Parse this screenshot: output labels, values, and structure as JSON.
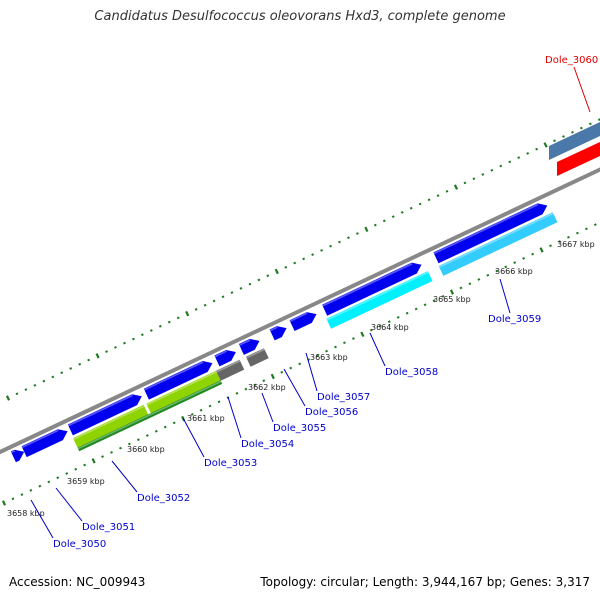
{
  "title": "Candidatus Desulfococcus oleovorans Hxd3, complete genome",
  "footer": {
    "accession": "Accession: NC_009943",
    "summary": "Topology: circular; Length: 3,944,167 bp; Genes: 3,317"
  },
  "colors": {
    "backbone": "#888888",
    "tick": "#1f7a1f",
    "gene_label": "#0000cc",
    "highlight_label": "#dd0000",
    "feature_blue": "#0000ee",
    "feature_green": "#8fd400",
    "feature_darkgreen": "#1e8a1e",
    "feature_cyan": "#00f0ff",
    "feature_lightblue": "#33ccff",
    "feature_gray": "#666666",
    "feature_steel": "#4a78a8",
    "feature_red": "#ff0000"
  },
  "scale_labels": [
    "3658 kbp",
    "3659 kbp",
    "3660 kbp",
    "3661 kbp",
    "3662 kbp",
    "3663 kbp",
    "3664 kbp",
    "3665 kbp",
    "3666 kbp",
    "3667 kbp"
  ],
  "genes": [
    {
      "name": "Dole_3050",
      "color": "#0000cc"
    },
    {
      "name": "Dole_3051",
      "color": "#0000cc"
    },
    {
      "name": "Dole_3052",
      "color": "#0000cc"
    },
    {
      "name": "Dole_3053",
      "color": "#0000cc"
    },
    {
      "name": "Dole_3054",
      "color": "#0000cc"
    },
    {
      "name": "Dole_3055",
      "color": "#0000cc"
    },
    {
      "name": "Dole_3056",
      "color": "#0000cc"
    },
    {
      "name": "Dole_3057",
      "color": "#0000cc"
    },
    {
      "name": "Dole_3058",
      "color": "#0000cc"
    },
    {
      "name": "Dole_3059",
      "color": "#0000cc"
    },
    {
      "name": "Dole_3060",
      "color": "#dd0000"
    }
  ]
}
